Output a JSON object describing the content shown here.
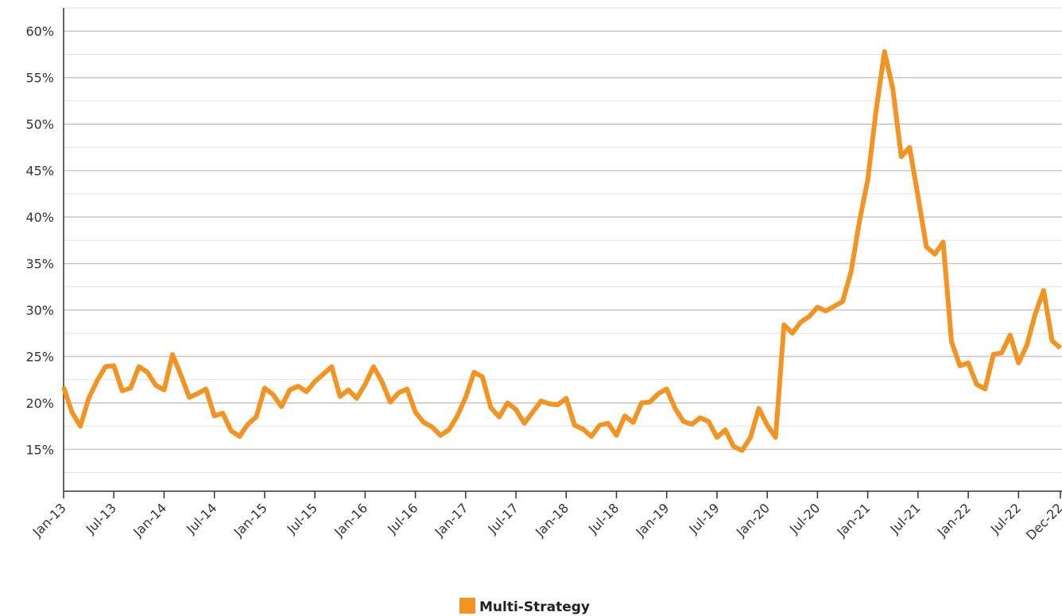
{
  "chart_data": {
    "type": "line",
    "title": "",
    "xlabel": "",
    "ylabel": "",
    "x_start": "Jan-13",
    "x_end": "Dec-22",
    "x_tick_labels": [
      "Jan-13",
      "Jul-13",
      "Jan-14",
      "Jul-14",
      "Jan-15",
      "Jul-15",
      "Jan-16",
      "Jul-16",
      "Jan-17",
      "Jul-17",
      "Jan-18",
      "Jul-18",
      "Jan-19",
      "Jul-19",
      "Jan-20",
      "Jul-20",
      "Jan-21",
      "Jul-21",
      "Jan-22",
      "Jul-22",
      "Dec-22"
    ],
    "x_tick_month_index": [
      0,
      6,
      12,
      18,
      24,
      30,
      36,
      42,
      48,
      54,
      60,
      66,
      72,
      78,
      84,
      90,
      96,
      102,
      108,
      114,
      119
    ],
    "y_tick_labels": [
      "15%",
      "20%",
      "25%",
      "30%",
      "35%",
      "40%",
      "45%",
      "50%",
      "55%",
      "60%"
    ],
    "y_tick_values": [
      15,
      20,
      25,
      30,
      35,
      40,
      45,
      50,
      55,
      60
    ],
    "ylim": [
      10.5,
      62.5
    ],
    "grid": "horizontal",
    "legend_position": "bottom-center",
    "series": [
      {
        "name": "Multi-Strategy",
        "color": "#f39321",
        "values": [
          21.7,
          19.0,
          17.5,
          20.5,
          22.4,
          23.9,
          24.0,
          21.3,
          21.6,
          23.9,
          23.3,
          21.9,
          21.4,
          25.2,
          23.0,
          20.6,
          21.0,
          21.5,
          18.6,
          18.9,
          17.0,
          16.4,
          17.7,
          18.5,
          21.6,
          20.9,
          19.6,
          21.4,
          21.8,
          21.2,
          22.3,
          23.1,
          23.9,
          20.7,
          21.4,
          20.5,
          22.0,
          23.9,
          22.3,
          20.1,
          21.1,
          21.5,
          19.0,
          17.9,
          17.4,
          16.5,
          17.1,
          18.6,
          20.6,
          23.3,
          22.8,
          19.5,
          18.5,
          20.0,
          19.3,
          17.8,
          19.0,
          20.2,
          19.9,
          19.8,
          20.5,
          17.6,
          17.2,
          16.4,
          17.6,
          17.8,
          16.5,
          18.6,
          17.9,
          20.0,
          20.1,
          21.0,
          21.5,
          19.4,
          18.0,
          17.7,
          18.4,
          18.0,
          16.3,
          17.1,
          15.3,
          14.9,
          16.3,
          19.4,
          17.6,
          16.3,
          28.4,
          27.5,
          28.7,
          29.3,
          30.3,
          29.9,
          30.4,
          30.9,
          34.1,
          39.5,
          44.0,
          51.5,
          57.8,
          53.8,
          46.5,
          47.5,
          42.2,
          36.8,
          36.0,
          37.3,
          26.6,
          24.0,
          24.3,
          22.0,
          21.5,
          25.2,
          25.4,
          27.3,
          24.3,
          26.2,
          29.6,
          32.1,
          26.7,
          25.9
        ]
      }
    ]
  }
}
